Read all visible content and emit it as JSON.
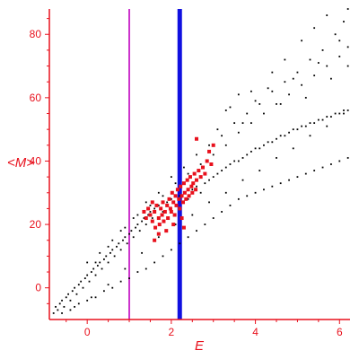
{
  "chart_data": {
    "type": "scatter",
    "title": "",
    "xlabel": "E",
    "ylabel": "<M>",
    "xlim": [
      -0.9,
      6.25
    ],
    "ylim": [
      -10,
      88
    ],
    "xticks": [
      0,
      2,
      4,
      6
    ],
    "yticks": [
      0,
      20,
      40,
      60,
      80
    ],
    "grid": false,
    "legend": "none",
    "colors": {
      "axis": "#e8111d",
      "background": "#ffffff",
      "series_black": "#000000",
      "series_red": "#e8111d",
      "vline_magenta": "#cc33cc",
      "vline_blue": "#1010e0"
    },
    "vertical_lines": [
      {
        "x": 1.0,
        "color": "#cc33cc"
      },
      {
        "x": 2.2,
        "color": "#1010e0"
      }
    ],
    "series": [
      {
        "color": "#000000",
        "marker": "small-dot",
        "points": [
          [
            -0.8,
            -8
          ],
          [
            -0.75,
            -6
          ],
          [
            -0.7,
            -7
          ],
          [
            -0.65,
            -5
          ],
          [
            -0.6,
            -4
          ],
          [
            -0.55,
            -6
          ],
          [
            -0.5,
            -3
          ],
          [
            -0.45,
            -2
          ],
          [
            -0.4,
            -4
          ],
          [
            -0.35,
            -1
          ],
          [
            -0.3,
            0
          ],
          [
            -0.25,
            -2
          ],
          [
            -0.2,
            1
          ],
          [
            -0.15,
            2
          ],
          [
            -0.1,
            0
          ],
          [
            -0.05,
            3
          ],
          [
            0.0,
            4
          ],
          [
            0.05,
            2
          ],
          [
            0.1,
            5
          ],
          [
            0.15,
            6
          ],
          [
            0.2,
            4
          ],
          [
            0.25,
            7
          ],
          [
            0.3,
            8
          ],
          [
            0.35,
            6
          ],
          [
            0.4,
            9
          ],
          [
            0.45,
            10
          ],
          [
            0.5,
            8
          ],
          [
            0.55,
            11
          ],
          [
            0.6,
            12
          ],
          [
            0.65,
            10
          ],
          [
            0.7,
            13
          ],
          [
            0.75,
            14
          ],
          [
            0.8,
            12
          ],
          [
            0.85,
            15
          ],
          [
            0.9,
            16
          ],
          [
            0.95,
            14
          ],
          [
            1.0,
            17
          ],
          [
            1.05,
            18
          ],
          [
            1.1,
            16
          ],
          [
            1.15,
            19
          ],
          [
            1.2,
            20
          ],
          [
            1.25,
            18
          ],
          [
            1.3,
            21
          ],
          [
            1.35,
            22
          ],
          [
            1.4,
            20
          ],
          [
            1.45,
            23
          ],
          [
            1.5,
            24
          ],
          [
            1.55,
            22
          ],
          [
            1.6,
            25
          ],
          [
            1.7,
            26
          ],
          [
            1.8,
            24
          ],
          [
            1.9,
            27
          ],
          [
            2.0,
            28
          ],
          [
            2.1,
            26
          ],
          [
            2.2,
            29
          ],
          [
            2.3,
            30
          ],
          [
            2.4,
            28
          ],
          [
            2.5,
            31
          ],
          [
            2.6,
            32
          ],
          [
            2.7,
            30
          ],
          [
            2.8,
            33
          ],
          [
            2.9,
            34
          ],
          [
            3.0,
            35
          ],
          [
            3.1,
            36
          ],
          [
            3.2,
            37
          ],
          [
            3.3,
            38
          ],
          [
            3.4,
            39
          ],
          [
            3.5,
            40
          ],
          [
            3.6,
            40
          ],
          [
            3.7,
            41
          ],
          [
            3.8,
            42
          ],
          [
            3.9,
            43
          ],
          [
            4.0,
            44
          ],
          [
            4.1,
            44
          ],
          [
            4.2,
            45
          ],
          [
            4.3,
            46
          ],
          [
            4.4,
            46
          ],
          [
            4.5,
            47
          ],
          [
            4.6,
            48
          ],
          [
            4.7,
            48
          ],
          [
            4.8,
            49
          ],
          [
            4.9,
            50
          ],
          [
            5.0,
            50
          ],
          [
            5.1,
            51
          ],
          [
            5.2,
            51
          ],
          [
            5.3,
            52
          ],
          [
            5.4,
            52
          ],
          [
            5.5,
            53
          ],
          [
            5.6,
            53
          ],
          [
            5.7,
            54
          ],
          [
            5.8,
            54
          ],
          [
            5.9,
            55
          ],
          [
            6.0,
            55
          ],
          [
            6.1,
            56
          ],
          [
            6.2,
            56
          ],
          [
            -0.6,
            -8
          ],
          [
            -0.4,
            -7
          ],
          [
            -0.2,
            -5
          ],
          [
            0.0,
            -4
          ],
          [
            0.2,
            -3
          ],
          [
            0.4,
            -1
          ],
          [
            0.6,
            0
          ],
          [
            0.8,
            2
          ],
          [
            1.0,
            3
          ],
          [
            1.2,
            5
          ],
          [
            1.4,
            6
          ],
          [
            1.6,
            8
          ],
          [
            1.8,
            10
          ],
          [
            2.0,
            12
          ],
          [
            2.2,
            14
          ],
          [
            2.4,
            16
          ],
          [
            2.6,
            18
          ],
          [
            2.8,
            20
          ],
          [
            3.0,
            22
          ],
          [
            3.2,
            24
          ],
          [
            3.4,
            26
          ],
          [
            3.6,
            28
          ],
          [
            3.8,
            29
          ],
          [
            4.0,
            30
          ],
          [
            4.2,
            31
          ],
          [
            4.4,
            32
          ],
          [
            4.6,
            33
          ],
          [
            4.8,
            34
          ],
          [
            5.0,
            35
          ],
          [
            5.2,
            36
          ],
          [
            5.4,
            37
          ],
          [
            5.6,
            38
          ],
          [
            5.8,
            39
          ],
          [
            6.0,
            40
          ],
          [
            6.2,
            41
          ],
          [
            0.2,
            8
          ],
          [
            0.5,
            13
          ],
          [
            0.8,
            18
          ],
          [
            1.1,
            22
          ],
          [
            1.4,
            27
          ],
          [
            1.7,
            30
          ],
          [
            2.0,
            35
          ],
          [
            2.3,
            38
          ],
          [
            2.6,
            42
          ],
          [
            2.9,
            45
          ],
          [
            3.2,
            48
          ],
          [
            3.5,
            52
          ],
          [
            3.8,
            55
          ],
          [
            4.1,
            58
          ],
          [
            4.4,
            62
          ],
          [
            4.7,
            65
          ],
          [
            5.0,
            68
          ],
          [
            5.3,
            72
          ],
          [
            5.6,
            75
          ],
          [
            5.9,
            80
          ],
          [
            6.1,
            84
          ],
          [
            6.2,
            88
          ],
          [
            0.0,
            8
          ],
          [
            0.3,
            11
          ],
          [
            0.6,
            15
          ],
          [
            0.9,
            19
          ],
          [
            1.2,
            23
          ],
          [
            1.5,
            26
          ],
          [
            1.8,
            29
          ],
          [
            2.1,
            33
          ],
          [
            2.4,
            36
          ],
          [
            2.7,
            39
          ],
          [
            3.0,
            42
          ],
          [
            3.3,
            45
          ],
          [
            3.6,
            49
          ],
          [
            3.9,
            52
          ],
          [
            4.2,
            55
          ],
          [
            4.5,
            58
          ],
          [
            4.8,
            61
          ],
          [
            5.1,
            64
          ],
          [
            5.4,
            67
          ],
          [
            5.7,
            70
          ],
          [
            6.0,
            73
          ],
          [
            6.2,
            76
          ],
          [
            -0.3,
            -6
          ],
          [
            0.1,
            -3
          ],
          [
            0.5,
            1
          ],
          [
            0.9,
            6
          ],
          [
            1.3,
            11
          ],
          [
            1.7,
            16
          ],
          [
            2.1,
            20
          ],
          [
            2.5,
            23
          ],
          [
            2.9,
            27
          ],
          [
            3.3,
            30
          ],
          [
            3.7,
            34
          ],
          [
            4.1,
            37
          ],
          [
            4.5,
            41
          ],
          [
            4.9,
            44
          ],
          [
            5.3,
            48
          ],
          [
            5.7,
            51
          ],
          [
            6.1,
            55
          ],
          [
            3.1,
            50
          ],
          [
            3.4,
            57
          ],
          [
            3.7,
            52
          ],
          [
            4.0,
            59
          ],
          [
            4.3,
            63
          ],
          [
            4.6,
            58
          ],
          [
            4.9,
            66
          ],
          [
            5.2,
            60
          ],
          [
            5.5,
            71
          ],
          [
            5.8,
            66
          ],
          [
            6.0,
            78
          ],
          [
            6.2,
            70
          ],
          [
            5.1,
            78
          ],
          [
            5.4,
            82
          ],
          [
            5.7,
            86
          ],
          [
            4.7,
            72
          ],
          [
            4.4,
            68
          ],
          [
            3.9,
            62
          ],
          [
            3.6,
            61
          ],
          [
            3.3,
            56
          ]
        ]
      },
      {
        "color": "#e8111d",
        "marker": "filled-square",
        "points": [
          [
            1.35,
            24
          ],
          [
            1.4,
            22
          ],
          [
            1.45,
            25
          ],
          [
            1.5,
            23
          ],
          [
            1.55,
            21
          ],
          [
            1.6,
            24
          ],
          [
            1.62,
            19
          ],
          [
            1.65,
            26
          ],
          [
            1.7,
            22
          ],
          [
            1.72,
            20
          ],
          [
            1.75,
            25
          ],
          [
            1.78,
            23
          ],
          [
            1.8,
            27
          ],
          [
            1.82,
            21
          ],
          [
            1.85,
            24
          ],
          [
            1.88,
            18
          ],
          [
            1.9,
            26
          ],
          [
            1.92,
            22
          ],
          [
            1.95,
            28
          ],
          [
            1.98,
            25
          ],
          [
            2.0,
            24
          ],
          [
            2.02,
            30
          ],
          [
            2.05,
            27
          ],
          [
            2.08,
            23
          ],
          [
            2.1,
            29
          ],
          [
            2.12,
            26
          ],
          [
            2.15,
            31
          ],
          [
            2.18,
            28
          ],
          [
            2.2,
            25
          ],
          [
            2.22,
            32
          ],
          [
            2.25,
            29
          ],
          [
            2.28,
            27
          ],
          [
            2.3,
            33
          ],
          [
            2.32,
            30
          ],
          [
            2.35,
            28
          ],
          [
            2.38,
            34
          ],
          [
            2.4,
            31
          ],
          [
            2.42,
            29
          ],
          [
            2.45,
            35
          ],
          [
            2.48,
            32
          ],
          [
            2.5,
            30
          ],
          [
            2.52,
            33
          ],
          [
            2.55,
            36
          ],
          [
            2.58,
            31
          ],
          [
            2.6,
            34
          ],
          [
            2.65,
            37
          ],
          [
            2.7,
            35
          ],
          [
            2.75,
            38
          ],
          [
            2.8,
            36
          ],
          [
            2.85,
            40
          ],
          [
            2.9,
            43
          ],
          [
            3.0,
            45
          ],
          [
            2.95,
            39
          ],
          [
            2.05,
            20
          ],
          [
            1.7,
            17
          ],
          [
            2.3,
            19
          ],
          [
            1.55,
            27
          ],
          [
            1.6,
            15
          ],
          [
            2.6,
            47
          ],
          [
            2.25,
            22
          ]
        ]
      }
    ]
  }
}
